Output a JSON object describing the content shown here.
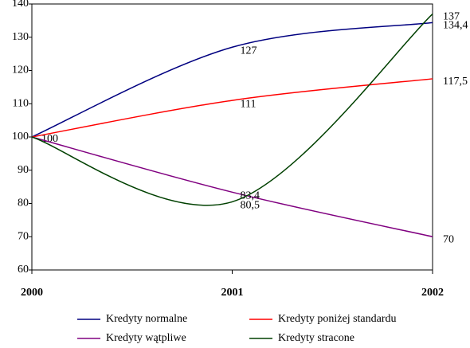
{
  "chart_data": {
    "type": "line",
    "categories": [
      "2000",
      "2001",
      "2002"
    ],
    "series": [
      {
        "name": "Kredyty normalne",
        "color": "#000080",
        "values": [
          100,
          127,
          134.4
        ],
        "value_labels": [
          "100",
          "127",
          "134,4"
        ]
      },
      {
        "name": "Kredyty poniżej standardu",
        "color": "#ff0000",
        "values": [
          100,
          111,
          117.5
        ],
        "value_labels": [
          null,
          "111",
          "117,5"
        ]
      },
      {
        "name": "Kredyty wątpliwe",
        "color": "#800080",
        "values": [
          100,
          83.4,
          70
        ],
        "value_labels": [
          null,
          "83,4",
          "70"
        ]
      },
      {
        "name": "Kredyty stracone",
        "color": "#004000",
        "values": [
          100,
          80.5,
          137
        ],
        "value_labels": [
          null,
          "80,5",
          "137"
        ]
      }
    ],
    "ylim": [
      60,
      140
    ],
    "yticks": [
      60,
      70,
      80,
      90,
      100,
      110,
      120,
      130,
      140
    ],
    "grid": false
  }
}
